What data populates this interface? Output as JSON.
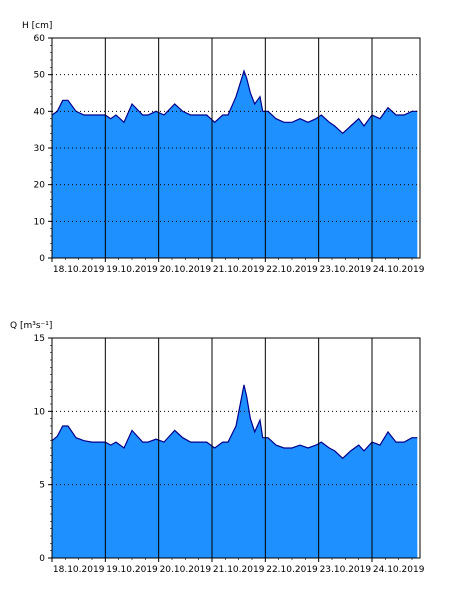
{
  "colors": {
    "fill": "#1e90ff",
    "line": "#00008b",
    "grid": "#000000",
    "background": "#ffffff"
  },
  "chart_data": [
    {
      "type": "area",
      "ylabel": "H [cm]",
      "xlabel": "",
      "title": "",
      "ylim": [
        0,
        60
      ],
      "y_ticks": [
        0,
        10,
        20,
        30,
        40,
        50,
        60
      ],
      "y_dotted_grid": [
        10,
        20,
        30,
        40,
        50
      ],
      "xlim": [
        0,
        6.9
      ],
      "x_ticks": [
        0,
        1,
        2,
        3,
        4,
        5,
        6
      ],
      "x_tick_labels": [
        "18.10.2019",
        "19.10.2019",
        "20.10.2019",
        "21.10.2019",
        "22.10.2019",
        "23.10.2019",
        "24.10.2019"
      ],
      "x": [
        0,
        0.1,
        0.2,
        0.3,
        0.45,
        0.6,
        0.75,
        0.9,
        1.0,
        1.1,
        1.2,
        1.35,
        1.5,
        1.7,
        1.8,
        1.95,
        2.1,
        2.3,
        2.45,
        2.6,
        2.75,
        2.9,
        3.05,
        3.2,
        3.3,
        3.45,
        3.6,
        3.65,
        3.72,
        3.8,
        3.9,
        3.95,
        4.05,
        4.2,
        4.35,
        4.5,
        4.65,
        4.8,
        4.95,
        5.05,
        5.2,
        5.3,
        5.45,
        5.6,
        5.75,
        5.85,
        6.0,
        6.15,
        6.3,
        6.45,
        6.6,
        6.75,
        6.85
      ],
      "y": [
        39,
        40,
        43,
        43,
        40,
        39,
        39,
        39,
        39,
        38,
        39,
        37,
        42,
        39,
        39,
        40,
        39,
        42,
        40,
        39,
        39,
        39,
        37,
        39,
        39,
        44,
        51,
        49,
        45,
        42,
        44,
        40,
        40,
        38,
        37,
        37,
        38,
        37,
        38,
        39,
        37,
        36,
        34,
        36,
        38,
        36,
        39,
        38,
        41,
        39,
        39,
        40,
        40
      ]
    },
    {
      "type": "area",
      "ylabel": "Q [m³s⁻¹]",
      "xlabel": "",
      "title": "",
      "ylim": [
        0,
        15
      ],
      "y_ticks": [
        0,
        5,
        10,
        15
      ],
      "y_dotted_grid": [
        5,
        10
      ],
      "xlim": [
        0,
        6.9
      ],
      "x_ticks": [
        0,
        1,
        2,
        3,
        4,
        5,
        6
      ],
      "x_tick_labels": [
        "18.10.2019",
        "19.10.2019",
        "20.10.2019",
        "21.10.2019",
        "22.10.2019",
        "23.10.2019",
        "24.10.2019"
      ],
      "x": [
        0,
        0.1,
        0.2,
        0.3,
        0.45,
        0.6,
        0.75,
        0.9,
        1.0,
        1.1,
        1.2,
        1.35,
        1.5,
        1.7,
        1.8,
        1.95,
        2.1,
        2.3,
        2.45,
        2.6,
        2.75,
        2.9,
        3.05,
        3.2,
        3.3,
        3.45,
        3.6,
        3.65,
        3.72,
        3.8,
        3.9,
        3.95,
        4.05,
        4.2,
        4.35,
        4.5,
        4.65,
        4.8,
        4.95,
        5.05,
        5.2,
        5.3,
        5.45,
        5.6,
        5.75,
        5.85,
        6.0,
        6.15,
        6.3,
        6.45,
        6.6,
        6.75,
        6.85
      ],
      "y": [
        8.0,
        8.3,
        9.0,
        9.0,
        8.2,
        8.0,
        7.9,
        7.9,
        7.9,
        7.7,
        7.9,
        7.5,
        8.7,
        7.9,
        7.9,
        8.1,
        7.9,
        8.7,
        8.2,
        7.9,
        7.9,
        7.9,
        7.5,
        7.9,
        7.9,
        9.0,
        11.8,
        11.0,
        9.5,
        8.6,
        9.4,
        8.2,
        8.2,
        7.7,
        7.5,
        7.5,
        7.7,
        7.5,
        7.7,
        7.9,
        7.5,
        7.3,
        6.8,
        7.3,
        7.7,
        7.3,
        7.9,
        7.7,
        8.6,
        7.9,
        7.9,
        8.2,
        8.2
      ]
    }
  ]
}
